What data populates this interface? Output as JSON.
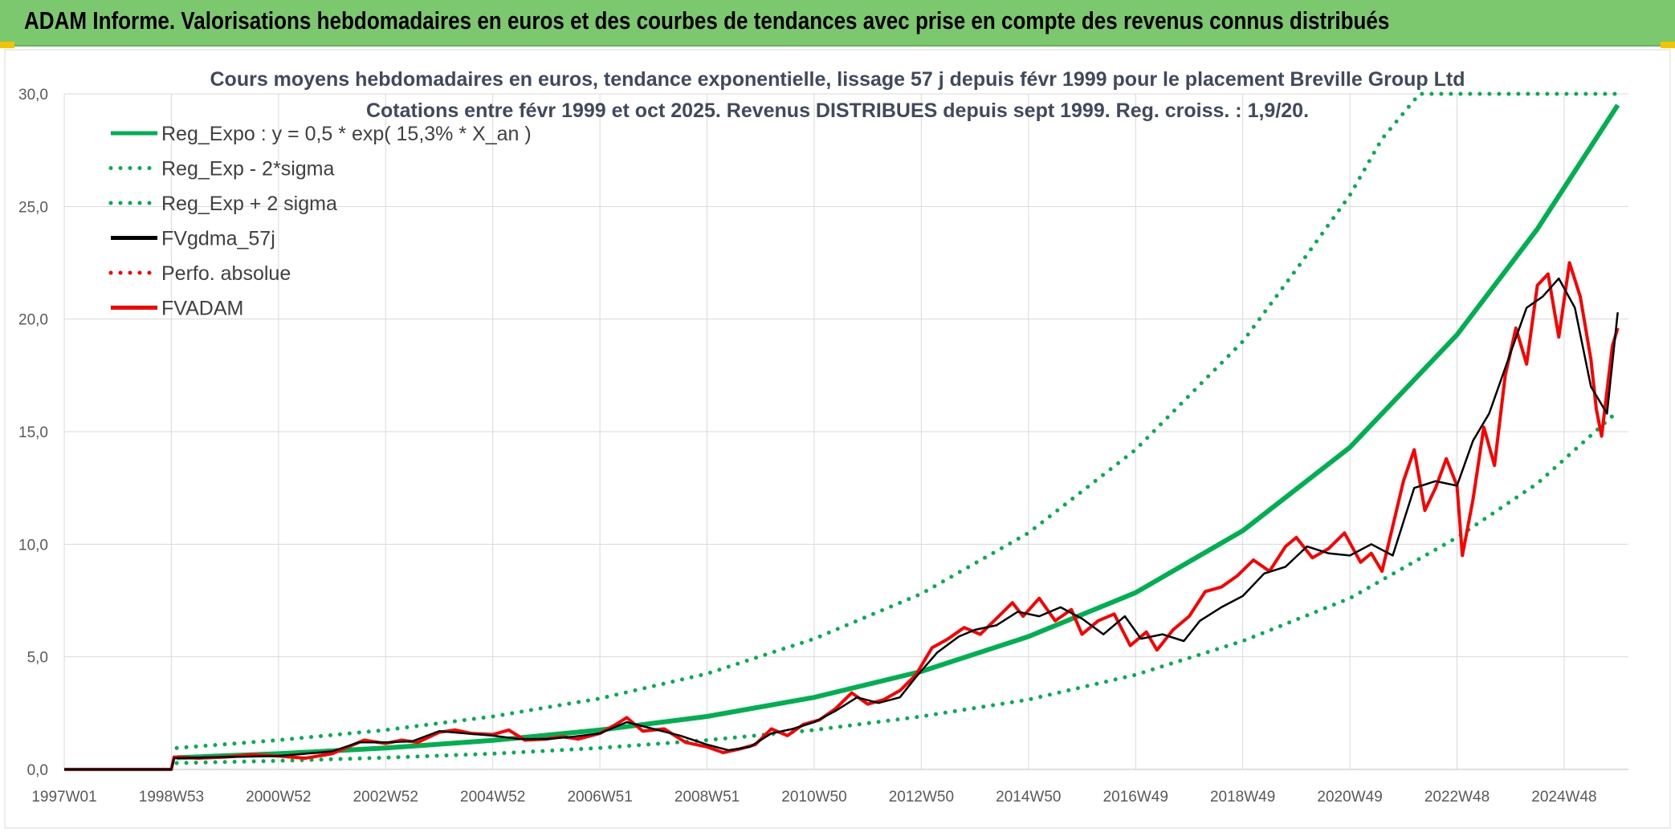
{
  "banner": {
    "title": "ADAM Informe. Valorisations hebdomadaires en euros et des courbes de tendances avec prise en compte des revenus connus distribués"
  },
  "colors": {
    "banner_bg": "#7cc86e",
    "trend": "#00b050",
    "fv_smooth": "#000000",
    "fvadam": "#ff0000",
    "accent_corner": "#f5c400"
  },
  "chart_data": {
    "type": "line",
    "title": "Cours moyens hebdomadaires en euros, tendance exponentielle, lissage 57 j depuis févr 1999 pour le placement Breville Group Ltd",
    "subtitle": "Cotations entre févr 1999 et oct 2025. Revenus DISTRIBUES depuis sept 1999. Reg. croiss. : 1,9/20.",
    "xlabel": "",
    "ylabel": "",
    "ylim": [
      0,
      30
    ],
    "yticks": [
      "0,0",
      "5,0",
      "10,0",
      "15,0",
      "20,0",
      "25,0",
      "30,0"
    ],
    "xlim_years": [
      1997.0,
      2026.2
    ],
    "xticks": [
      {
        "label": "1997W01",
        "t": 1997.0
      },
      {
        "label": "1998W53",
        "t": 1999.0
      },
      {
        "label": "2000W52",
        "t": 2001.0
      },
      {
        "label": "2002W52",
        "t": 2003.0
      },
      {
        "label": "2004W52",
        "t": 2005.0
      },
      {
        "label": "2006W51",
        "t": 2007.0
      },
      {
        "label": "2008W51",
        "t": 2009.0
      },
      {
        "label": "2010W50",
        "t": 2011.0
      },
      {
        "label": "2012W50",
        "t": 2013.0
      },
      {
        "label": "2014W50",
        "t": 2015.0
      },
      {
        "label": "2016W49",
        "t": 2017.0
      },
      {
        "label": "2018W49",
        "t": 2019.0
      },
      {
        "label": "2020W49",
        "t": 2021.0
      },
      {
        "label": "2022W48",
        "t": 2023.0
      },
      {
        "label": "2024W48",
        "t": 2025.0
      }
    ],
    "grid": true,
    "legend_position": "top-left",
    "series": [
      {
        "name": "Reg_Expo : y = 0,5 * exp( 15,3% *  X_an )",
        "style": "solid",
        "color": "#00b050",
        "points": [
          [
            1999.1,
            0.52
          ],
          [
            2001,
            0.7
          ],
          [
            2003,
            0.95
          ],
          [
            2005,
            1.29
          ],
          [
            2007,
            1.75
          ],
          [
            2009,
            2.35
          ],
          [
            2011,
            3.2
          ],
          [
            2013,
            4.35
          ],
          [
            2015,
            5.9
          ],
          [
            2017,
            7.85
          ],
          [
            2019,
            10.6
          ],
          [
            2021,
            14.3
          ],
          [
            2023,
            19.3
          ],
          [
            2024.5,
            24.0
          ],
          [
            2026,
            29.5
          ]
        ]
      },
      {
        "name": "Reg_Exp - 2*sigma",
        "style": "dotted",
        "color": "#00b050",
        "points": [
          [
            1999.1,
            0.28
          ],
          [
            2001,
            0.38
          ],
          [
            2003,
            0.52
          ],
          [
            2005,
            0.7
          ],
          [
            2007,
            0.95
          ],
          [
            2009,
            1.3
          ],
          [
            2011,
            1.75
          ],
          [
            2013,
            2.35
          ],
          [
            2015,
            3.1
          ],
          [
            2017,
            4.2
          ],
          [
            2019,
            5.7
          ],
          [
            2021,
            7.6
          ],
          [
            2023,
            10.3
          ],
          [
            2024.5,
            12.7
          ],
          [
            2026,
            15.9
          ]
        ]
      },
      {
        "name": "Reg_Exp + 2 sigma",
        "style": "dotted",
        "color": "#00b050",
        "points": [
          [
            1999.1,
            0.95
          ],
          [
            2001,
            1.3
          ],
          [
            2003,
            1.75
          ],
          [
            2005,
            2.35
          ],
          [
            2007,
            3.15
          ],
          [
            2009,
            4.25
          ],
          [
            2011,
            5.8
          ],
          [
            2013,
            7.8
          ],
          [
            2015,
            10.5
          ],
          [
            2017,
            14.2
          ],
          [
            2019,
            19.0
          ],
          [
            2020,
            22.2
          ],
          [
            2021,
            25.5
          ],
          [
            2021.6,
            28.0
          ],
          [
            2022.3,
            30.0
          ],
          [
            2026,
            30.0
          ]
        ]
      },
      {
        "name": "FVgdma_57j",
        "style": "solid",
        "color": "#000000",
        "points": [
          [
            1997.0,
            0
          ],
          [
            1999.0,
            0
          ],
          [
            1999.05,
            0.5
          ],
          [
            2000,
            0.55
          ],
          [
            2001,
            0.6
          ],
          [
            2002,
            0.8
          ],
          [
            2002.5,
            1.2
          ],
          [
            2003,
            1.2
          ],
          [
            2003.5,
            1.25
          ],
          [
            2004,
            1.7
          ],
          [
            2004.5,
            1.6
          ],
          [
            2005,
            1.5
          ],
          [
            2005.5,
            1.35
          ],
          [
            2006,
            1.35
          ],
          [
            2006.5,
            1.45
          ],
          [
            2007,
            1.6
          ],
          [
            2007.5,
            2.1
          ],
          [
            2008,
            1.8
          ],
          [
            2008.5,
            1.5
          ],
          [
            2009,
            1.1
          ],
          [
            2009.4,
            0.85
          ],
          [
            2009.8,
            1.0
          ],
          [
            2010.2,
            1.6
          ],
          [
            2010.6,
            1.8
          ],
          [
            2011,
            2.1
          ],
          [
            2011.4,
            2.6
          ],
          [
            2011.8,
            3.2
          ],
          [
            2012.2,
            2.95
          ],
          [
            2012.6,
            3.2
          ],
          [
            2012.9,
            4.1
          ],
          [
            2013.3,
            5.2
          ],
          [
            2013.7,
            5.9
          ],
          [
            2014.0,
            6.2
          ],
          [
            2014.4,
            6.4
          ],
          [
            2014.8,
            7.0
          ],
          [
            2015.2,
            6.8
          ],
          [
            2015.6,
            7.2
          ],
          [
            2016.0,
            6.7
          ],
          [
            2016.4,
            6.0
          ],
          [
            2016.8,
            6.8
          ],
          [
            2017.1,
            5.8
          ],
          [
            2017.5,
            6.0
          ],
          [
            2017.9,
            5.7
          ],
          [
            2018.2,
            6.6
          ],
          [
            2018.6,
            7.2
          ],
          [
            2019.0,
            7.7
          ],
          [
            2019.4,
            8.7
          ],
          [
            2019.8,
            9.0
          ],
          [
            2020.2,
            9.9
          ],
          [
            2020.6,
            9.6
          ],
          [
            2021.0,
            9.5
          ],
          [
            2021.4,
            10.0
          ],
          [
            2021.8,
            9.5
          ],
          [
            2022.2,
            12.5
          ],
          [
            2022.6,
            12.8
          ],
          [
            2023.0,
            12.6
          ],
          [
            2023.3,
            14.6
          ],
          [
            2023.6,
            15.8
          ],
          [
            2024.0,
            18.5
          ],
          [
            2024.3,
            20.5
          ],
          [
            2024.6,
            21.0
          ],
          [
            2024.9,
            21.8
          ],
          [
            2025.2,
            20.5
          ],
          [
            2025.5,
            17.0
          ],
          [
            2025.8,
            15.8
          ],
          [
            2026.0,
            20.3
          ]
        ]
      },
      {
        "name": "Perfo. absolue",
        "style": "dotted",
        "color": "#ff0000",
        "points": []
      },
      {
        "name": "FVADAM",
        "style": "solid",
        "color": "#ff0000",
        "points": [
          [
            1997.0,
            0
          ],
          [
            1999.0,
            0
          ],
          [
            1999.05,
            0.55
          ],
          [
            1999.5,
            0.5
          ],
          [
            2000,
            0.55
          ],
          [
            2000.5,
            0.65
          ],
          [
            2001,
            0.6
          ],
          [
            2001.5,
            0.5
          ],
          [
            2002,
            0.7
          ],
          [
            2002.3,
            1.0
          ],
          [
            2002.6,
            1.3
          ],
          [
            2003,
            1.15
          ],
          [
            2003.3,
            1.3
          ],
          [
            2003.6,
            1.2
          ],
          [
            2004,
            1.65
          ],
          [
            2004.3,
            1.75
          ],
          [
            2004.6,
            1.6
          ],
          [
            2005,
            1.55
          ],
          [
            2005.3,
            1.75
          ],
          [
            2005.6,
            1.3
          ],
          [
            2006,
            1.35
          ],
          [
            2006.3,
            1.45
          ],
          [
            2006.6,
            1.35
          ],
          [
            2007,
            1.6
          ],
          [
            2007.3,
            2.0
          ],
          [
            2007.5,
            2.3
          ],
          [
            2007.8,
            1.7
          ],
          [
            2008.2,
            1.8
          ],
          [
            2008.6,
            1.2
          ],
          [
            2009,
            1.0
          ],
          [
            2009.3,
            0.75
          ],
          [
            2009.6,
            0.9
          ],
          [
            2009.9,
            1.1
          ],
          [
            2010.2,
            1.8
          ],
          [
            2010.5,
            1.5
          ],
          [
            2010.8,
            2.0
          ],
          [
            2011.1,
            2.2
          ],
          [
            2011.4,
            2.7
          ],
          [
            2011.7,
            3.4
          ],
          [
            2012.0,
            2.9
          ],
          [
            2012.3,
            3.1
          ],
          [
            2012.6,
            3.5
          ],
          [
            2012.9,
            4.2
          ],
          [
            2013.2,
            5.4
          ],
          [
            2013.5,
            5.8
          ],
          [
            2013.8,
            6.3
          ],
          [
            2014.1,
            6.0
          ],
          [
            2014.4,
            6.7
          ],
          [
            2014.7,
            7.4
          ],
          [
            2014.9,
            6.8
          ],
          [
            2015.2,
            7.6
          ],
          [
            2015.5,
            6.6
          ],
          [
            2015.8,
            7.1
          ],
          [
            2016.0,
            6.0
          ],
          [
            2016.3,
            6.6
          ],
          [
            2016.6,
            6.9
          ],
          [
            2016.9,
            5.5
          ],
          [
            2017.2,
            6.1
          ],
          [
            2017.4,
            5.3
          ],
          [
            2017.7,
            6.2
          ],
          [
            2018.0,
            6.8
          ],
          [
            2018.3,
            7.9
          ],
          [
            2018.6,
            8.1
          ],
          [
            2018.9,
            8.6
          ],
          [
            2019.2,
            9.3
          ],
          [
            2019.5,
            8.8
          ],
          [
            2019.8,
            9.9
          ],
          [
            2020.0,
            10.3
          ],
          [
            2020.3,
            9.4
          ],
          [
            2020.6,
            9.8
          ],
          [
            2020.9,
            10.5
          ],
          [
            2021.2,
            9.2
          ],
          [
            2021.4,
            9.6
          ],
          [
            2021.6,
            8.8
          ],
          [
            2021.8,
            10.8
          ],
          [
            2022.0,
            12.8
          ],
          [
            2022.2,
            14.2
          ],
          [
            2022.4,
            11.5
          ],
          [
            2022.6,
            12.5
          ],
          [
            2022.8,
            13.8
          ],
          [
            2023.0,
            12.6
          ],
          [
            2023.1,
            9.5
          ],
          [
            2023.3,
            12.0
          ],
          [
            2023.5,
            15.2
          ],
          [
            2023.7,
            13.5
          ],
          [
            2023.9,
            17.5
          ],
          [
            2024.1,
            19.6
          ],
          [
            2024.3,
            18.0
          ],
          [
            2024.5,
            21.5
          ],
          [
            2024.7,
            22.0
          ],
          [
            2024.9,
            19.2
          ],
          [
            2025.1,
            22.5
          ],
          [
            2025.3,
            21.0
          ],
          [
            2025.5,
            18.2
          ],
          [
            2025.6,
            16.0
          ],
          [
            2025.7,
            14.8
          ],
          [
            2025.9,
            18.8
          ],
          [
            2026.0,
            19.6
          ]
        ]
      }
    ]
  }
}
